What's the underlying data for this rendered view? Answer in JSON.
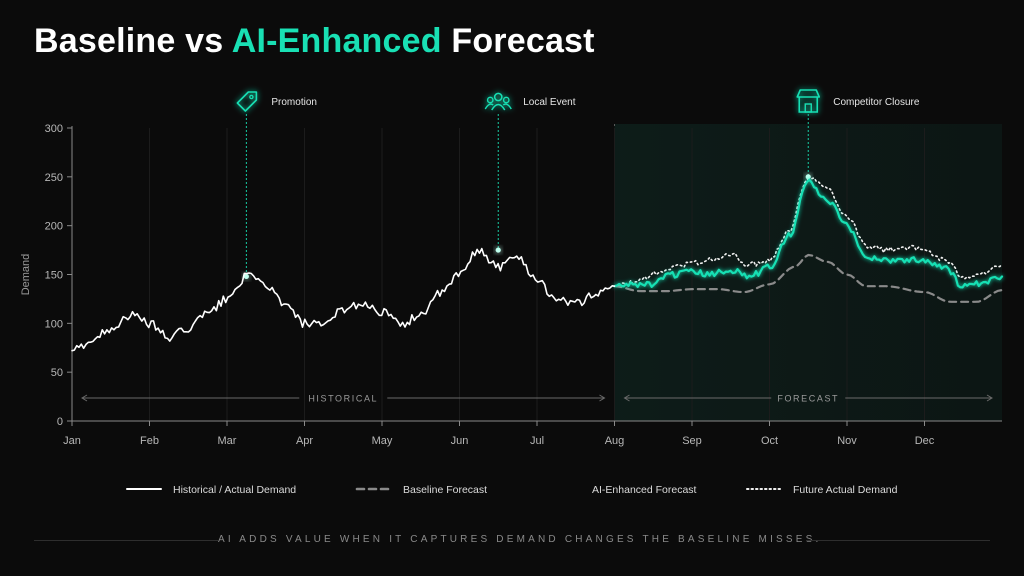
{
  "title": {
    "part1": "Baseline vs ",
    "accent": "AI-Enhanced",
    "part2": " Forecast"
  },
  "colors": {
    "accent": "#19e0b4",
    "historical": "#ffffff",
    "baseline": "#8a8a8a",
    "background": "#0b0b0b"
  },
  "footer": {
    "caption": "AI ADDS VALUE WHEN IT CAPTURES DEMAND CHANGES THE BASELINE MISSES."
  },
  "chart_data": {
    "type": "line",
    "title": "Baseline vs AI-Enhanced Forecast",
    "ylabel": "Demand",
    "xlabel": "",
    "ylim": [
      0,
      300
    ],
    "yticks": [
      0,
      50,
      100,
      150,
      200,
      250,
      300
    ],
    "xlim": [
      0,
      12
    ],
    "xticks": [
      {
        "label": "Jan",
        "x": 0
      },
      {
        "label": "Feb",
        "x": 1
      },
      {
        "label": "Mar",
        "x": 2
      },
      {
        "label": "Apr",
        "x": 3
      },
      {
        "label": "May",
        "x": 4
      },
      {
        "label": "Jun",
        "x": 5
      },
      {
        "label": "Jul",
        "x": 6
      },
      {
        "label": "Aug",
        "x": 7
      },
      {
        "label": "Sep",
        "x": 8
      },
      {
        "label": "Oct",
        "x": 9
      },
      {
        "label": "Nov",
        "x": 10
      },
      {
        "label": "Dec",
        "x": 11
      }
    ],
    "grid": true,
    "regions": [
      {
        "label": "HISTORICAL",
        "from": 0,
        "to": 7
      },
      {
        "label": "FORECAST",
        "from": 7,
        "to": 12
      }
    ],
    "events": [
      {
        "label": "Promotion",
        "x": 2.25,
        "y": 148,
        "icon": "tag-icon"
      },
      {
        "label": "Local Event",
        "x": 5.5,
        "y": 175,
        "icon": "people-icon"
      },
      {
        "label": "Competitor Closure",
        "x": 9.5,
        "y": 250,
        "icon": "store-icon"
      }
    ],
    "series": [
      {
        "name": "Historical / Actual Demand",
        "style": "solid-white",
        "x": [
          0,
          0.25,
          0.5,
          0.75,
          1.0,
          1.25,
          1.5,
          1.75,
          2.0,
          2.25,
          2.5,
          2.75,
          3.0,
          3.25,
          3.5,
          3.75,
          4.0,
          4.25,
          4.5,
          4.75,
          5.0,
          5.25,
          5.5,
          5.75,
          6.0,
          6.25,
          6.5,
          6.75,
          7.0
        ],
        "values": [
          72,
          82,
          95,
          108,
          100,
          85,
          95,
          110,
          125,
          148,
          140,
          118,
          100,
          97,
          115,
          120,
          112,
          98,
          110,
          130,
          150,
          175,
          158,
          168,
          145,
          125,
          120,
          130,
          138
        ]
      },
      {
        "name": "Baseline Forecast",
        "style": "dashed-gray",
        "x": [
          7.0,
          7.33,
          7.67,
          8.0,
          8.33,
          8.67,
          9.0,
          9.33,
          9.5,
          9.75,
          10.0,
          10.25,
          10.5,
          11.0,
          11.33,
          11.67,
          12.0
        ],
        "values": [
          138,
          133,
          133,
          135,
          135,
          132,
          140,
          158,
          170,
          163,
          150,
          138,
          138,
          132,
          122,
          122,
          134
        ]
      },
      {
        "name": "AI-Enhanced Forecast",
        "style": "solid-accent",
        "x": [
          7.0,
          7.25,
          7.5,
          7.75,
          8.0,
          8.25,
          8.5,
          8.75,
          9.0,
          9.25,
          9.5,
          9.75,
          10.0,
          10.25,
          10.5,
          10.75,
          11.0,
          11.25,
          11.5,
          11.75,
          12.0
        ],
        "values": [
          138,
          140,
          140,
          150,
          152,
          150,
          155,
          148,
          158,
          190,
          245,
          225,
          200,
          168,
          165,
          165,
          165,
          158,
          138,
          140,
          148
        ]
      },
      {
        "name": "Future Actual Demand",
        "style": "dotted-white",
        "x": [
          7.0,
          7.25,
          7.5,
          7.75,
          8.0,
          8.25,
          8.5,
          8.75,
          9.0,
          9.25,
          9.5,
          9.75,
          10.0,
          10.25,
          10.5,
          10.75,
          11.0,
          11.25,
          11.5,
          11.75,
          12.0
        ],
        "values": [
          138,
          142,
          150,
          157,
          162,
          165,
          170,
          160,
          165,
          195,
          250,
          238,
          210,
          180,
          175,
          178,
          175,
          165,
          148,
          152,
          160
        ]
      }
    ],
    "legend": {
      "placement": "bottom",
      "items": [
        {
          "label": "Historical / Actual Demand",
          "style": "solid-white"
        },
        {
          "label": "Baseline Forecast",
          "style": "dashed-gray"
        },
        {
          "label": "AI-Enhanced Forecast",
          "style": "solid-accent"
        },
        {
          "label": "Future Actual Demand",
          "style": "dotted-white"
        }
      ]
    }
  }
}
